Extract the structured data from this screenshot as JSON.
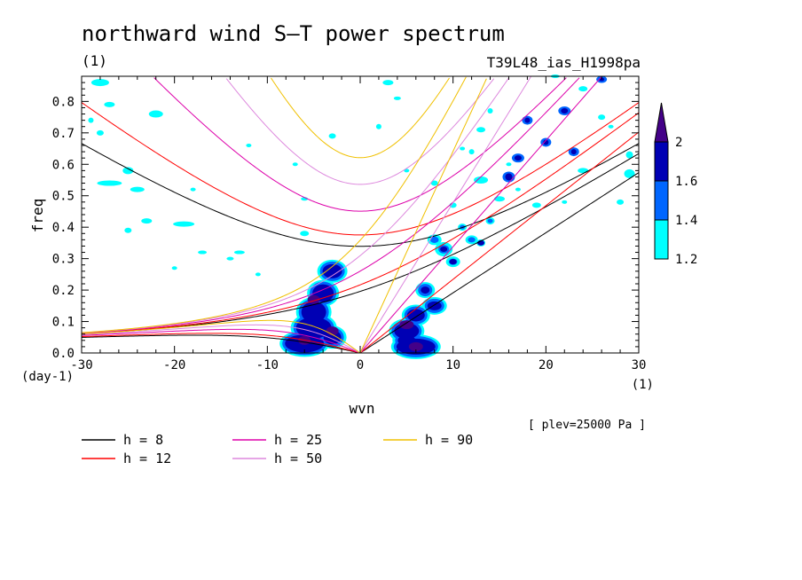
{
  "chart_data": {
    "type": "heatmap",
    "title": "northward wind S–T power spectrum",
    "subtitle_left": "(1)",
    "subtitle_right": "T39L48_ias_H1998pa",
    "xlabel": "wvn",
    "ylabel": "freq",
    "x_unit": "(1)",
    "y_unit": "(day-1)",
    "xlim": [
      -30,
      30
    ],
    "ylim": [
      0,
      0.88
    ],
    "x_ticks": [
      -30,
      -20,
      -10,
      0,
      10,
      20,
      30
    ],
    "y_ticks": [
      0.0,
      0.1,
      0.2,
      0.3,
      0.4,
      0.5,
      0.6,
      0.7,
      0.8
    ],
    "x_tick_labels": [
      "-30",
      "-20",
      "-10",
      "0",
      "10",
      "20",
      "30"
    ],
    "y_tick_labels": [
      "0.0",
      "0.1",
      "0.2",
      "0.3",
      "0.4",
      "0.5",
      "0.6",
      "0.7",
      "0.8"
    ],
    "note": "[ plev=25000 Pa ]",
    "colorbar": {
      "levels": [
        1.2,
        1.4,
        1.6,
        2
      ],
      "labels": [
        "1.2",
        "1.4",
        "1.6",
        "2"
      ],
      "colors": [
        "#00ffff",
        "#0066ff",
        "#0000b4",
        "#440088"
      ]
    },
    "shaded_regions": [
      {
        "wvn": [
          -8,
          -3
        ],
        "freq": [
          0.0,
          0.28
        ],
        "level": 2
      },
      {
        "wvn": [
          3,
          8
        ],
        "freq": [
          0.0,
          0.12
        ],
        "level": 2
      },
      {
        "wvn": [
          8,
          15
        ],
        "freq": [
          0.15,
          0.42
        ],
        "level": 1.6
      },
      {
        "wvn": [
          14,
          28
        ],
        "freq": [
          0.45,
          0.88
        ],
        "level": 1.6
      },
      {
        "wvn": [
          -30,
          30
        ],
        "freq": [
          0.1,
          0.88
        ],
        "level": 1.2
      }
    ],
    "dispersion_curves": [
      {
        "h": "8",
        "color": "#000000"
      },
      {
        "h": "12",
        "color": "#ff0000"
      },
      {
        "h": "25",
        "color": "#dd00aa"
      },
      {
        "h": "50",
        "color": "#dd88dd"
      },
      {
        "h": "90",
        "color": "#f0c000"
      }
    ],
    "legend": [
      {
        "label": "h =  8",
        "color": "#000000"
      },
      {
        "label": "h = 12",
        "color": "#ff0000"
      },
      {
        "label": "h = 25",
        "color": "#dd00aa"
      },
      {
        "label": "h = 50",
        "color": "#dd88dd"
      },
      {
        "label": "h = 90",
        "color": "#f0c000"
      }
    ],
    "grid": false
  }
}
